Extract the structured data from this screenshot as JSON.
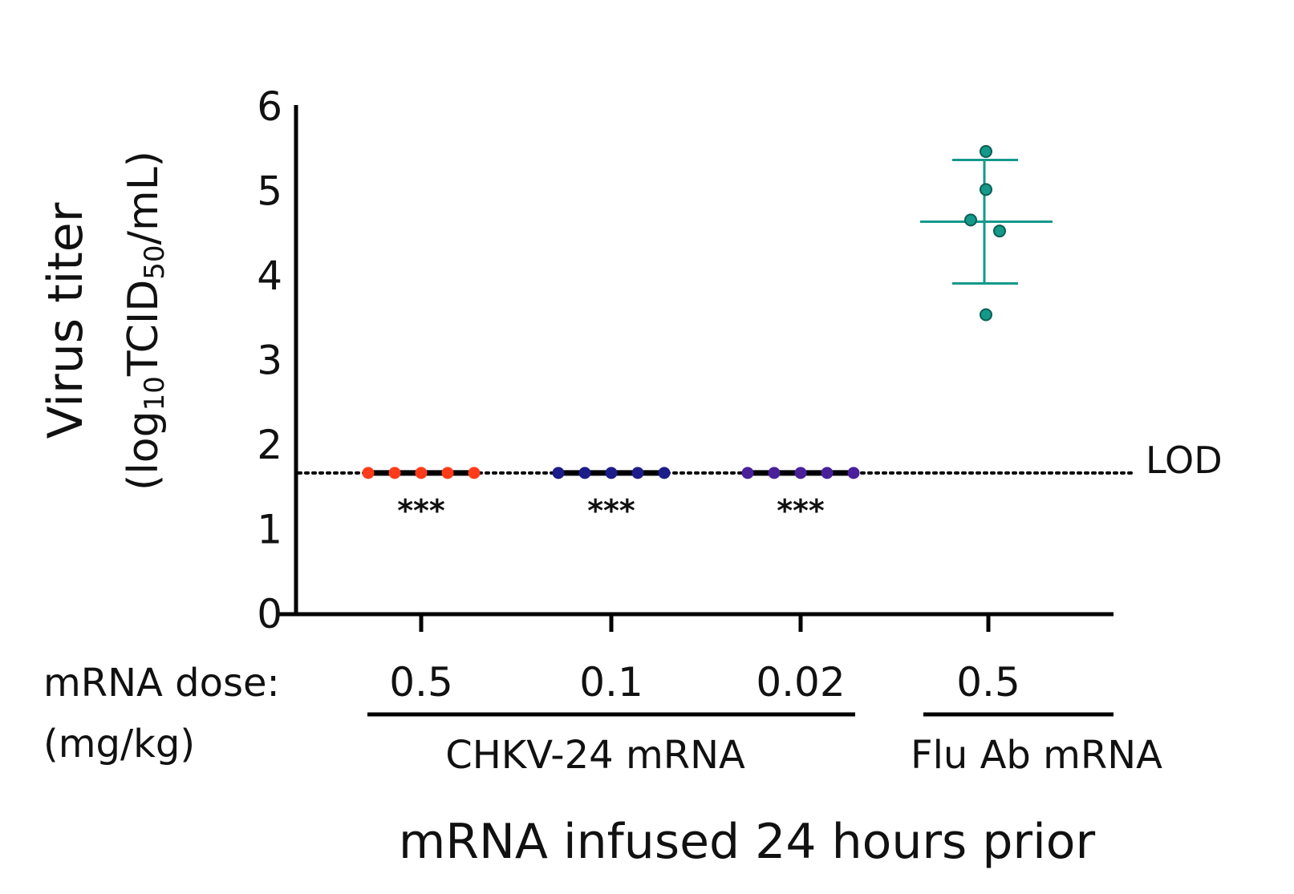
{
  "chart_data": {
    "type": "scatter",
    "title": "",
    "xlabel": "mRNA infused 24 hours prior",
    "ylabel": "Virus titer",
    "ylabel_units": "(log10TCID50/mL)",
    "ylim": [
      0,
      6
    ],
    "yticks": [
      "0",
      "1",
      "2",
      "3",
      "4",
      "5",
      "6"
    ],
    "grid": false,
    "dose_label": "mRNA dose:",
    "dose_units": "(mg/kg)",
    "lod": {
      "value": 1.67,
      "label": "LOD"
    },
    "groups": [
      {
        "dose": "0.5",
        "agent": "CHKV-24 mRNA",
        "color": "#ff3b1a",
        "values": [
          1.67,
          1.67,
          1.67,
          1.67,
          1.67
        ],
        "significance": "***"
      },
      {
        "dose": "0.1",
        "agent": "CHKV-24 mRNA",
        "color": "#1c1c8a",
        "values": [
          1.67,
          1.67,
          1.67,
          1.67,
          1.67
        ],
        "significance": "***"
      },
      {
        "dose": "0.02",
        "agent": "CHKV-24 mRNA",
        "color": "#4a1f9a",
        "values": [
          1.67,
          1.67,
          1.67,
          1.67,
          1.67
        ],
        "significance": "***"
      },
      {
        "dose": "0.5",
        "agent": "Flu Ab mRNA",
        "color": "#14998a",
        "values": [
          5.47,
          5.02,
          4.66,
          4.53,
          3.54
        ],
        "mean": 4.64,
        "sd": 0.73,
        "significance": ""
      }
    ],
    "agent_labels": [
      "CHKV-24 mRNA",
      "Flu Ab mRNA"
    ]
  }
}
